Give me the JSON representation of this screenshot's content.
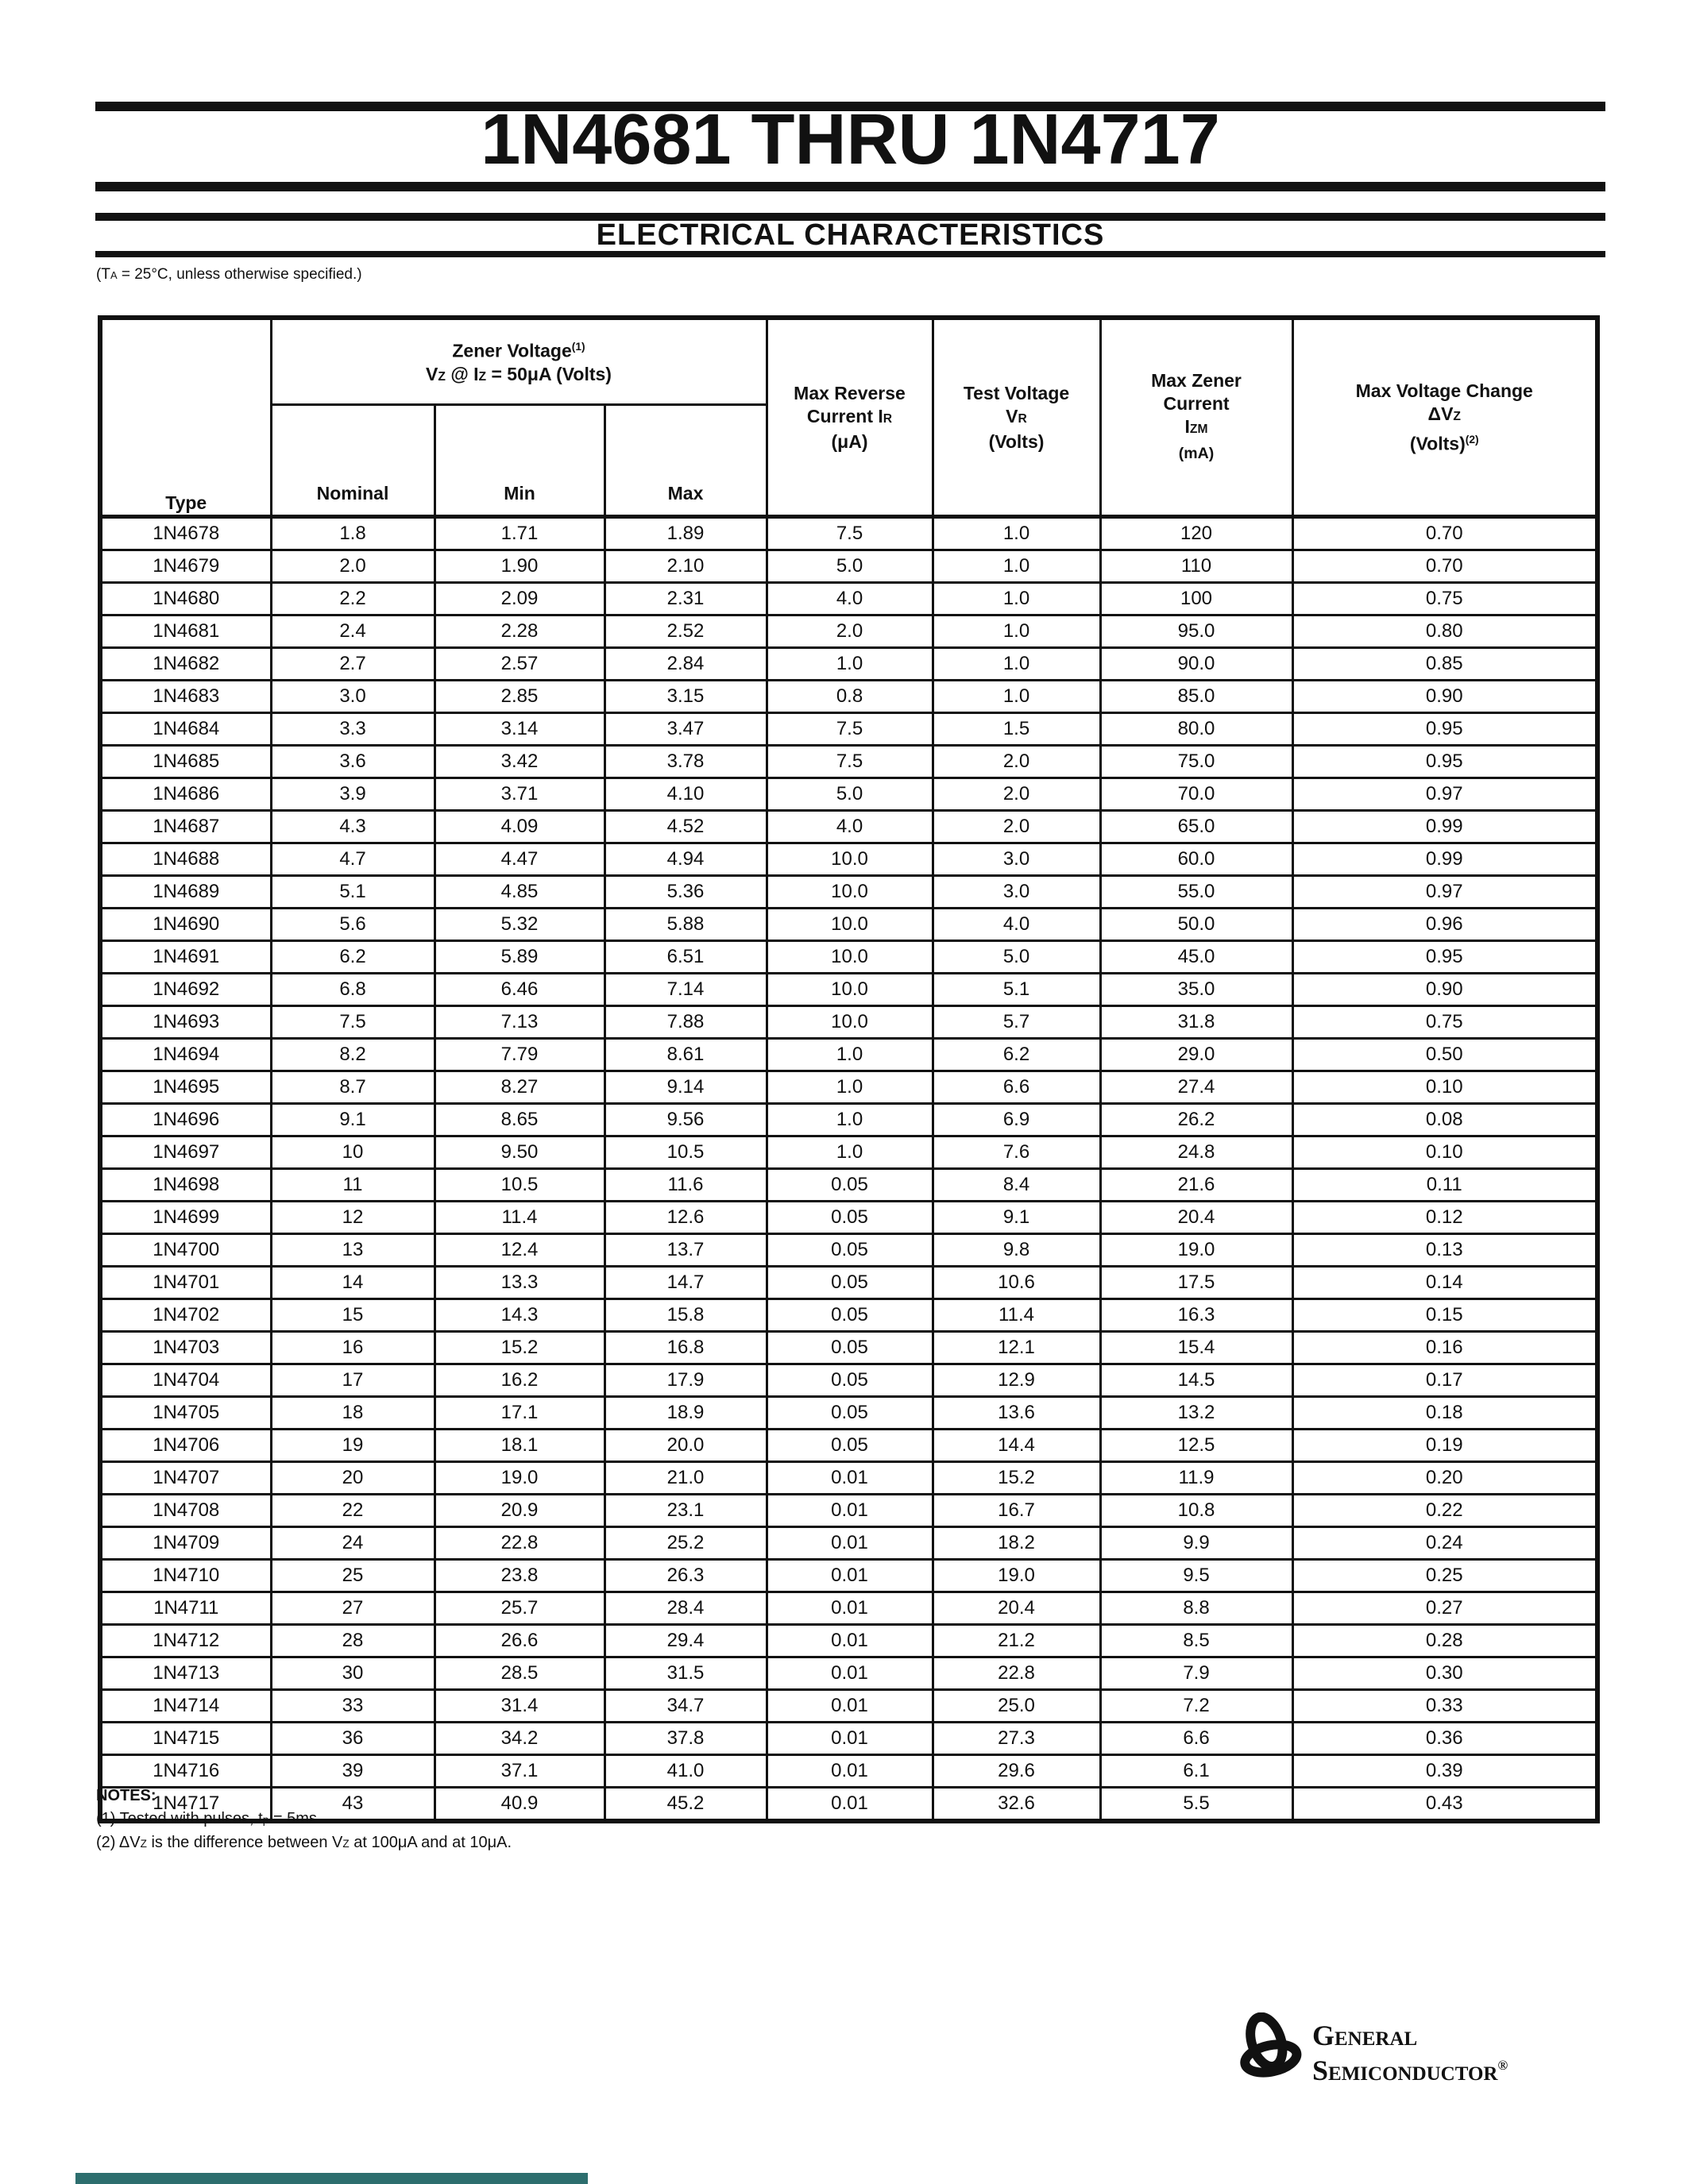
{
  "page": {
    "title": "1N4681 THRU 1N4717",
    "section_title": "ELECTRICAL CHARACTERISTICS",
    "conditions": [
      {
        "t": "(T"
      },
      {
        "t": "A",
        "style": "sub"
      },
      {
        "t": " = 25°C, unless otherwise specified.)"
      }
    ]
  },
  "table": {
    "headers": {
      "type": "Type",
      "zener_group": {
        "line1": [
          {
            "t": "Zener Voltage"
          },
          {
            "t": "(1)",
            "style": "sup"
          }
        ],
        "line2": [
          {
            "t": "V"
          },
          {
            "t": "Z",
            "style": "sub"
          },
          {
            "t": " @ I"
          },
          {
            "t": "Z",
            "style": "sub"
          },
          {
            "t": " = 50μA (Volts)"
          }
        ]
      },
      "nominal": "Nominal",
      "min": "Min",
      "max": "Max",
      "max_reverse": {
        "line1": [
          {
            "t": "Max Reverse"
          }
        ],
        "line2": [
          {
            "t": "Current I"
          },
          {
            "t": "R",
            "style": "sub"
          }
        ],
        "line3": [
          {
            "t": "(μA)"
          }
        ]
      },
      "test_voltage": {
        "line1": [
          {
            "t": "Test Voltage"
          }
        ],
        "line2": [
          {
            "t": "V"
          },
          {
            "t": "R",
            "style": "sub"
          }
        ],
        "line3": [
          {
            "t": "(Volts)"
          }
        ]
      },
      "max_zener": {
        "line1": [
          {
            "t": "Max Zener"
          }
        ],
        "line2": [
          {
            "t": "Current"
          }
        ],
        "line3": [
          {
            "t": "I"
          },
          {
            "t": "ZM",
            "style": "sub"
          }
        ],
        "line4": [
          {
            "t": "(mA)",
            "style": "small"
          }
        ]
      },
      "max_voltage_change": {
        "line1": [
          {
            "t": "Max Voltage Change"
          }
        ],
        "line2": [
          {
            "t": "ΔV"
          },
          {
            "t": "Z",
            "style": "sub"
          }
        ],
        "line3": [
          {
            "t": "(Volts)"
          },
          {
            "t": "(2)",
            "style": "sup"
          }
        ]
      }
    },
    "rows": [
      [
        "1N4678",
        "1.8",
        "1.71",
        "1.89",
        "7.5",
        "1.0",
        "120",
        "0.70"
      ],
      [
        "1N4679",
        "2.0",
        "1.90",
        "2.10",
        "5.0",
        "1.0",
        "110",
        "0.70"
      ],
      [
        "1N4680",
        "2.2",
        "2.09",
        "2.31",
        "4.0",
        "1.0",
        "100",
        "0.75"
      ],
      [
        "1N4681",
        "2.4",
        "2.28",
        "2.52",
        "2.0",
        "1.0",
        "95.0",
        "0.80"
      ],
      [
        "1N4682",
        "2.7",
        "2.57",
        "2.84",
        "1.0",
        "1.0",
        "90.0",
        "0.85"
      ],
      [
        "1N4683",
        "3.0",
        "2.85",
        "3.15",
        "0.8",
        "1.0",
        "85.0",
        "0.90"
      ],
      [
        "1N4684",
        "3.3",
        "3.14",
        "3.47",
        "7.5",
        "1.5",
        "80.0",
        "0.95"
      ],
      [
        "1N4685",
        "3.6",
        "3.42",
        "3.78",
        "7.5",
        "2.0",
        "75.0",
        "0.95"
      ],
      [
        "1N4686",
        "3.9",
        "3.71",
        "4.10",
        "5.0",
        "2.0",
        "70.0",
        "0.97"
      ],
      [
        "1N4687",
        "4.3",
        "4.09",
        "4.52",
        "4.0",
        "2.0",
        "65.0",
        "0.99"
      ],
      [
        "1N4688",
        "4.7",
        "4.47",
        "4.94",
        "10.0",
        "3.0",
        "60.0",
        "0.99"
      ],
      [
        "1N4689",
        "5.1",
        "4.85",
        "5.36",
        "10.0",
        "3.0",
        "55.0",
        "0.97"
      ],
      [
        "1N4690",
        "5.6",
        "5.32",
        "5.88",
        "10.0",
        "4.0",
        "50.0",
        "0.96"
      ],
      [
        "1N4691",
        "6.2",
        "5.89",
        "6.51",
        "10.0",
        "5.0",
        "45.0",
        "0.95"
      ],
      [
        "1N4692",
        "6.8",
        "6.46",
        "7.14",
        "10.0",
        "5.1",
        "35.0",
        "0.90"
      ],
      [
        "1N4693",
        "7.5",
        "7.13",
        "7.88",
        "10.0",
        "5.7",
        "31.8",
        "0.75"
      ],
      [
        "1N4694",
        "8.2",
        "7.79",
        "8.61",
        "1.0",
        "6.2",
        "29.0",
        "0.50"
      ],
      [
        "1N4695",
        "8.7",
        "8.27",
        "9.14",
        "1.0",
        "6.6",
        "27.4",
        "0.10"
      ],
      [
        "1N4696",
        "9.1",
        "8.65",
        "9.56",
        "1.0",
        "6.9",
        "26.2",
        "0.08"
      ],
      [
        "1N4697",
        "10",
        "9.50",
        "10.5",
        "1.0",
        "7.6",
        "24.8",
        "0.10"
      ],
      [
        "1N4698",
        "11",
        "10.5",
        "11.6",
        "0.05",
        "8.4",
        "21.6",
        "0.11"
      ],
      [
        "1N4699",
        "12",
        "11.4",
        "12.6",
        "0.05",
        "9.1",
        "20.4",
        "0.12"
      ],
      [
        "1N4700",
        "13",
        "12.4",
        "13.7",
        "0.05",
        "9.8",
        "19.0",
        "0.13"
      ],
      [
        "1N4701",
        "14",
        "13.3",
        "14.7",
        "0.05",
        "10.6",
        "17.5",
        "0.14"
      ],
      [
        "1N4702",
        "15",
        "14.3",
        "15.8",
        "0.05",
        "11.4",
        "16.3",
        "0.15"
      ],
      [
        "1N4703",
        "16",
        "15.2",
        "16.8",
        "0.05",
        "12.1",
        "15.4",
        "0.16"
      ],
      [
        "1N4704",
        "17",
        "16.2",
        "17.9",
        "0.05",
        "12.9",
        "14.5",
        "0.17"
      ],
      [
        "1N4705",
        "18",
        "17.1",
        "18.9",
        "0.05",
        "13.6",
        "13.2",
        "0.18"
      ],
      [
        "1N4706",
        "19",
        "18.1",
        "20.0",
        "0.05",
        "14.4",
        "12.5",
        "0.19"
      ],
      [
        "1N4707",
        "20",
        "19.0",
        "21.0",
        "0.01",
        "15.2",
        "11.9",
        "0.20"
      ],
      [
        "1N4708",
        "22",
        "20.9",
        "23.1",
        "0.01",
        "16.7",
        "10.8",
        "0.22"
      ],
      [
        "1N4709",
        "24",
        "22.8",
        "25.2",
        "0.01",
        "18.2",
        "9.9",
        "0.24"
      ],
      [
        "1N4710",
        "25",
        "23.8",
        "26.3",
        "0.01",
        "19.0",
        "9.5",
        "0.25"
      ],
      [
        "1N4711",
        "27",
        "25.7",
        "28.4",
        "0.01",
        "20.4",
        "8.8",
        "0.27"
      ],
      [
        "1N4712",
        "28",
        "26.6",
        "29.4",
        "0.01",
        "21.2",
        "8.5",
        "0.28"
      ],
      [
        "1N4713",
        "30",
        "28.5",
        "31.5",
        "0.01",
        "22.8",
        "7.9",
        "0.30"
      ],
      [
        "1N4714",
        "33",
        "31.4",
        "34.7",
        "0.01",
        "25.0",
        "7.2",
        "0.33"
      ],
      [
        "1N4715",
        "36",
        "34.2",
        "37.8",
        "0.01",
        "27.3",
        "6.6",
        "0.36"
      ],
      [
        "1N4716",
        "39",
        "37.1",
        "41.0",
        "0.01",
        "29.6",
        "6.1",
        "0.39"
      ],
      [
        "1N4717",
        "43",
        "40.9",
        "45.2",
        "0.01",
        "32.6",
        "5.5",
        "0.43"
      ]
    ]
  },
  "notes": {
    "heading": "NOTES:",
    "note1": [
      {
        "t": "(1) Tested with pulses, t"
      },
      {
        "t": "p",
        "style": "sub"
      },
      {
        "t": " = 5ms"
      }
    ],
    "note2": [
      {
        "t": "(2) ΔV"
      },
      {
        "t": "Z",
        "style": "sub"
      },
      {
        "t": " is the difference between V"
      },
      {
        "t": "Z",
        "style": "sub"
      },
      {
        "t": " at 100μA and at 10μA."
      }
    ]
  },
  "logo": {
    "line1": "General",
    "line2": "Semiconductor",
    "registered": "®"
  },
  "colors": {
    "ink": "#111111",
    "bottom_bar": "#2d6e6e"
  }
}
